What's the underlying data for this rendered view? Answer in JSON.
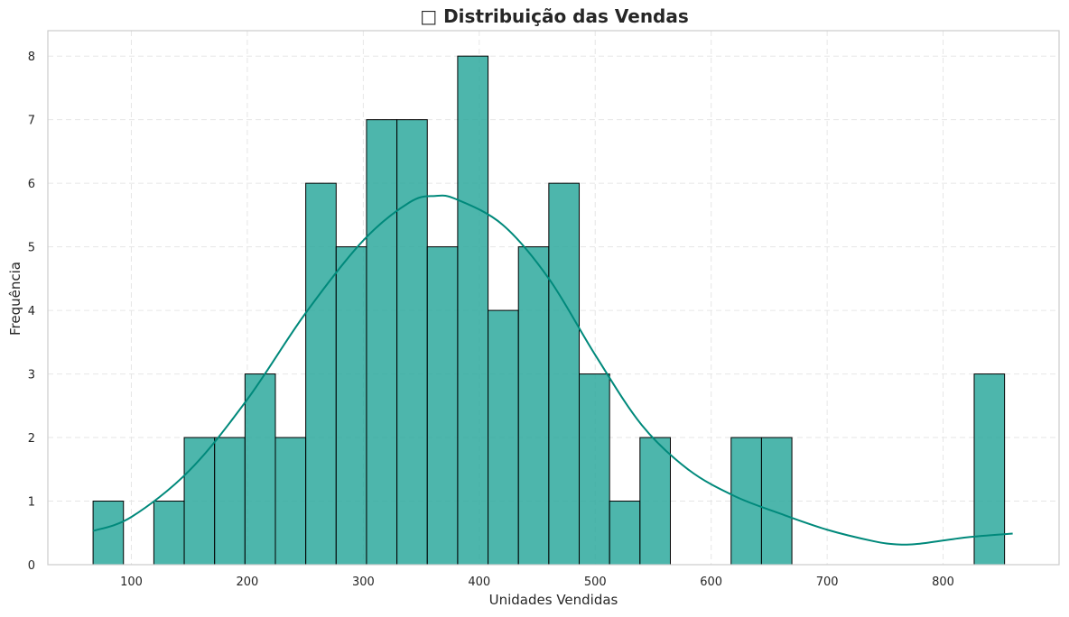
{
  "chart_data": {
    "type": "bar",
    "title": "□ Distribuição das Vendas",
    "xlabel": "Unidades Vendidas",
    "ylabel": "Frequência",
    "xlim": [
      28,
      900
    ],
    "ylim": [
      0,
      8.4
    ],
    "xticks": [
      100,
      200,
      300,
      400,
      500,
      600,
      700,
      800
    ],
    "yticks": [
      0,
      1,
      2,
      3,
      4,
      5,
      6,
      7,
      8
    ],
    "grid": true,
    "bar_color": "#26a69a",
    "kde_color": "#00897b",
    "bins": [
      {
        "x0": 67,
        "x1": 93.2,
        "count": 1
      },
      {
        "x0": 93.2,
        "x1": 119.4,
        "count": 0
      },
      {
        "x0": 119.4,
        "x1": 145.6,
        "count": 1
      },
      {
        "x0": 145.6,
        "x1": 171.8,
        "count": 2
      },
      {
        "x0": 171.8,
        "x1": 198.0,
        "count": 2
      },
      {
        "x0": 198.0,
        "x1": 224.2,
        "count": 3
      },
      {
        "x0": 224.2,
        "x1": 250.4,
        "count": 2
      },
      {
        "x0": 250.4,
        "x1": 276.6,
        "count": 6
      },
      {
        "x0": 276.6,
        "x1": 302.8,
        "count": 5
      },
      {
        "x0": 302.8,
        "x1": 329.0,
        "count": 7
      },
      {
        "x0": 329.0,
        "x1": 355.2,
        "count": 7
      },
      {
        "x0": 355.2,
        "x1": 381.4,
        "count": 5
      },
      {
        "x0": 381.4,
        "x1": 407.6,
        "count": 8
      },
      {
        "x0": 407.6,
        "x1": 433.8,
        "count": 4
      },
      {
        "x0": 433.8,
        "x1": 460.0,
        "count": 5
      },
      {
        "x0": 460.0,
        "x1": 486.2,
        "count": 6
      },
      {
        "x0": 486.2,
        "x1": 512.4,
        "count": 3
      },
      {
        "x0": 512.4,
        "x1": 538.6,
        "count": 1
      },
      {
        "x0": 538.6,
        "x1": 564.8,
        "count": 2
      },
      {
        "x0": 564.8,
        "x1": 591.0,
        "count": 0
      },
      {
        "x0": 591.0,
        "x1": 617.2,
        "count": 0
      },
      {
        "x0": 617.2,
        "x1": 643.4,
        "count": 2
      },
      {
        "x0": 643.4,
        "x1": 669.6,
        "count": 2
      },
      {
        "x0": 669.6,
        "x1": 695.8,
        "count": 0
      },
      {
        "x0": 695.8,
        "x1": 722.0,
        "count": 0
      },
      {
        "x0": 722.0,
        "x1": 748.2,
        "count": 0
      },
      {
        "x0": 748.2,
        "x1": 774.4,
        "count": 0
      },
      {
        "x0": 774.4,
        "x1": 800.6,
        "count": 0
      },
      {
        "x0": 800.6,
        "x1": 826.8,
        "count": 0
      },
      {
        "x0": 826.8,
        "x1": 853.0,
        "count": 3
      }
    ],
    "kde_points": [
      [
        67,
        0.53
      ],
      [
        100,
        0.75
      ],
      [
        150,
        1.48
      ],
      [
        200,
        2.6
      ],
      [
        250,
        3.95
      ],
      [
        300,
        5.1
      ],
      [
        340,
        5.7
      ],
      [
        362,
        5.8
      ],
      [
        380,
        5.75
      ],
      [
        420,
        5.35
      ],
      [
        460,
        4.5
      ],
      [
        500,
        3.3
      ],
      [
        540,
        2.2
      ],
      [
        580,
        1.5
      ],
      [
        620,
        1.08
      ],
      [
        660,
        0.8
      ],
      [
        700,
        0.55
      ],
      [
        740,
        0.37
      ],
      [
        760,
        0.32
      ],
      [
        780,
        0.33
      ],
      [
        820,
        0.43
      ],
      [
        860,
        0.49
      ]
    ]
  }
}
